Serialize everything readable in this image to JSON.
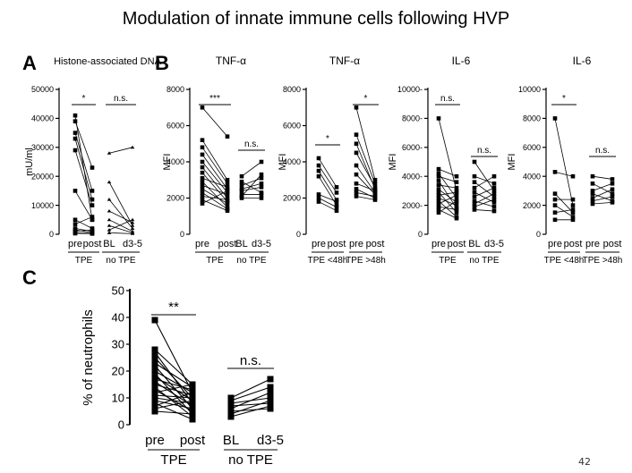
{
  "slide": {
    "title": "Modulation of innate immune cells following HVP",
    "slide_number": "42",
    "panel_labels": [
      "A",
      "B",
      "C"
    ]
  },
  "colors": {
    "ink": "#000000",
    "background": "#ffffff"
  },
  "chart_data": [
    {
      "id": "histone",
      "panel": "A",
      "type": "paired-line",
      "title": "Histone-associated DNA",
      "ylabel": "mU/ml",
      "ylim": [
        0,
        50000
      ],
      "yticks": [
        0,
        10000,
        20000,
        30000,
        40000,
        50000
      ],
      "ticklabels": [
        "0",
        "10000",
        "20000",
        "30000",
        "40000",
        "50000"
      ],
      "groups": [
        {
          "x_labels": [
            "pre",
            "post"
          ],
          "group_label": "TPE",
          "significance": "*",
          "markers": [
            "square",
            "square"
          ],
          "pairs": [
            [
              41000,
              5000
            ],
            [
              39000,
              23000
            ],
            [
              35000,
              15000
            ],
            [
              33000,
              12000
            ],
            [
              29000,
              10000
            ],
            [
              15000,
              5000
            ],
            [
              5000,
              2000
            ],
            [
              3500,
              6000
            ],
            [
              2000,
              1000
            ],
            [
              1500,
              500
            ],
            [
              1000,
              1500
            ],
            [
              500,
              300
            ],
            [
              300,
              200
            ]
          ]
        },
        {
          "x_labels": [
            "BL",
            "d3-5"
          ],
          "group_label": "no TPE",
          "significance": "n.s.",
          "markers": [
            "triangle",
            "triangle"
          ],
          "pairs": [
            [
              28000,
              30000
            ],
            [
              18000,
              3000
            ],
            [
              12000,
              2000
            ],
            [
              8000,
              4000
            ],
            [
              5000,
              1000
            ],
            [
              3000,
              500
            ],
            [
              1500,
              5000
            ],
            [
              500,
              200
            ]
          ]
        }
      ]
    },
    {
      "id": "tnf1",
      "panel": "B",
      "type": "paired-line",
      "title": "TNF-α",
      "ylabel": "MFI",
      "ylim": [
        0,
        8000
      ],
      "yticks": [
        0,
        2000,
        4000,
        6000,
        8000
      ],
      "ticklabels": [
        "0",
        "2000",
        "4000",
        "6000",
        "8000"
      ],
      "groups": [
        {
          "x_labels": [
            "pre",
            "post"
          ],
          "group_label": "TPE",
          "significance": "***",
          "markers": [
            "square",
            "square"
          ],
          "pairs": [
            [
              7000,
              5400
            ],
            [
              5200,
              3000
            ],
            [
              4800,
              2800
            ],
            [
              4400,
              2500
            ],
            [
              4000,
              2300
            ],
            [
              3700,
              2000
            ],
            [
              3400,
              1800
            ],
            [
              3100,
              2600
            ],
            [
              2900,
              1500
            ],
            [
              2700,
              2200
            ],
            [
              2500,
              1700
            ],
            [
              2300,
              1400
            ],
            [
              2100,
              1900
            ],
            [
              1900,
              1300
            ],
            [
              1700,
              2400
            ]
          ]
        },
        {
          "x_labels": [
            "BL",
            "d3-5"
          ],
          "group_label": "no TPE",
          "significance": "n.s.",
          "markers": [
            "square",
            "square"
          ],
          "pairs": [
            [
              3200,
              4000
            ],
            [
              2900,
              2300
            ],
            [
              2700,
              3100
            ],
            [
              2500,
              2800
            ],
            [
              2400,
              2600
            ],
            [
              2200,
              2200
            ],
            [
              2100,
              3300
            ],
            [
              2000,
              2000
            ]
          ]
        }
      ]
    },
    {
      "id": "tnf2",
      "panel": "B",
      "type": "paired-line",
      "title": "TNF-α",
      "ylabel": "MFI",
      "ylim": [
        0,
        8000
      ],
      "yticks": [
        0,
        2000,
        4000,
        6000,
        8000
      ],
      "ticklabels": [
        "0",
        "2000",
        "4000",
        "6000",
        "8000"
      ],
      "groups": [
        {
          "x_labels": [
            "pre",
            "post"
          ],
          "group_label": "TPE <48h",
          "significance": "*",
          "markers": [
            "square",
            "square"
          ],
          "pairs": [
            [
              4200,
              2600
            ],
            [
              3800,
              2300
            ],
            [
              3500,
              1900
            ],
            [
              3200,
              1600
            ],
            [
              2200,
              1800
            ],
            [
              2000,
              1500
            ],
            [
              1800,
              1300
            ]
          ]
        },
        {
          "x_labels": [
            "pre",
            "post"
          ],
          "group_label": "TPE >48h",
          "significance": "*",
          "markers": [
            "square",
            "square"
          ],
          "pairs": [
            [
              7000,
              3000
            ],
            [
              5500,
              2800
            ],
            [
              5000,
              2500
            ],
            [
              4500,
              2600
            ],
            [
              3800,
              2300
            ],
            [
              3300,
              2200
            ],
            [
              2800,
              2400
            ],
            [
              2500,
              2000
            ],
            [
              2300,
              2100
            ],
            [
              2100,
              1900
            ]
          ]
        }
      ]
    },
    {
      "id": "il6a",
      "panel": "B",
      "type": "paired-line",
      "title": "IL-6",
      "ylabel": "MFI",
      "ylim": [
        0,
        10000
      ],
      "yticks": [
        0,
        2000,
        4000,
        6000,
        8000,
        10000
      ],
      "ticklabels": [
        "0",
        "2000-",
        "4000-",
        "6000-",
        "8000-",
        "10000-"
      ],
      "groups": [
        {
          "x_labels": [
            "pre",
            "post"
          ],
          "group_label": "TPE",
          "significance": "n.s.",
          "markers": [
            "square",
            "square"
          ],
          "pairs": [
            [
              8000,
              3000
            ],
            [
              4500,
              4000
            ],
            [
              4200,
              2500
            ],
            [
              4000,
              3600
            ],
            [
              3700,
              1800
            ],
            [
              3400,
              3200
            ],
            [
              3100,
              2200
            ],
            [
              2900,
              1500
            ],
            [
              2700,
              2900
            ],
            [
              2500,
              2000
            ],
            [
              2300,
              1200
            ],
            [
              2100,
              2700
            ],
            [
              1900,
              1700
            ],
            [
              1700,
              1100
            ],
            [
              1500,
              2300
            ]
          ]
        },
        {
          "x_labels": [
            "BL",
            "d3-5"
          ],
          "group_label": "no TPE",
          "significance": "n.s.",
          "markers": [
            "square",
            "square"
          ],
          "pairs": [
            [
              5000,
              3000
            ],
            [
              4000,
              3500
            ],
            [
              3600,
              2600
            ],
            [
              3200,
              4000
            ],
            [
              2900,
              2200
            ],
            [
              2600,
              3200
            ],
            [
              2300,
              1900
            ],
            [
              2100,
              2800
            ],
            [
              1900,
              2400
            ],
            [
              1700,
              1600
            ]
          ]
        }
      ]
    },
    {
      "id": "il6b",
      "panel": "B",
      "type": "paired-line",
      "title": "IL-6",
      "ylabel": "MFI",
      "ylim": [
        0,
        10000
      ],
      "yticks": [
        0,
        2000,
        4000,
        6000,
        8000,
        10000
      ],
      "ticklabels": [
        "0",
        "2000",
        "4000",
        "6000",
        "8000",
        "10000"
      ],
      "groups": [
        {
          "x_labels": [
            "pre",
            "post"
          ],
          "group_label": "TPE <48h",
          "significance": "*",
          "markers": [
            "square",
            "square"
          ],
          "pairs": [
            [
              8000,
              2000
            ],
            [
              4300,
              4000
            ],
            [
              2800,
              1500
            ],
            [
              2400,
              2400
            ],
            [
              2000,
              1200
            ],
            [
              1500,
              1700
            ],
            [
              1000,
              1000
            ]
          ]
        },
        {
          "x_labels": [
            "pre",
            "post"
          ],
          "group_label": "TPE >48h",
          "significance": "n.s.",
          "markers": [
            "square",
            "square"
          ],
          "pairs": [
            [
              4000,
              3800
            ],
            [
              3500,
              2800
            ],
            [
              3000,
              3500
            ],
            [
              2800,
              2300
            ],
            [
              2500,
              3100
            ],
            [
              2300,
              2600
            ],
            [
              2100,
              2200
            ]
          ]
        }
      ]
    },
    {
      "id": "neut",
      "panel": "C",
      "type": "paired-line",
      "title": "",
      "ylabel": "% of neutrophils",
      "ylim": [
        0,
        50
      ],
      "yticks": [
        0,
        10,
        20,
        30,
        40,
        50
      ],
      "ticklabels": [
        "0",
        "10",
        "20",
        "30",
        "40",
        "50"
      ],
      "groups": [
        {
          "x_labels": [
            "pre",
            "post"
          ],
          "group_label": "TPE",
          "significance": "**",
          "markers": [
            "square",
            "square"
          ],
          "pairs": [
            [
              39,
              12
            ],
            [
              28,
              15
            ],
            [
              27,
              8
            ],
            [
              25,
              10
            ],
            [
              23,
              14
            ],
            [
              22,
              6
            ],
            [
              20,
              12
            ],
            [
              19,
              4
            ],
            [
              18,
              9
            ],
            [
              17,
              13
            ],
            [
              16,
              7
            ],
            [
              15,
              11
            ],
            [
              14,
              3
            ],
            [
              13,
              5
            ],
            [
              12,
              15
            ],
            [
              11,
              10
            ],
            [
              10,
              8
            ],
            [
              9,
              6
            ],
            [
              8,
              2
            ],
            [
              7,
              12
            ],
            [
              6,
              9
            ],
            [
              5,
              4
            ]
          ]
        },
        {
          "x_labels": [
            "BL",
            "d3-5"
          ],
          "group_label": "no TPE",
          "significance": "n.s.",
          "markers": [
            "square",
            "square"
          ],
          "pairs": [
            [
              10,
              17
            ],
            [
              9,
              14
            ],
            [
              8,
              10
            ],
            [
              7,
              8
            ],
            [
              6,
              12
            ],
            [
              5,
              6
            ],
            [
              4,
              9
            ],
            [
              3,
              7
            ]
          ]
        }
      ]
    }
  ]
}
